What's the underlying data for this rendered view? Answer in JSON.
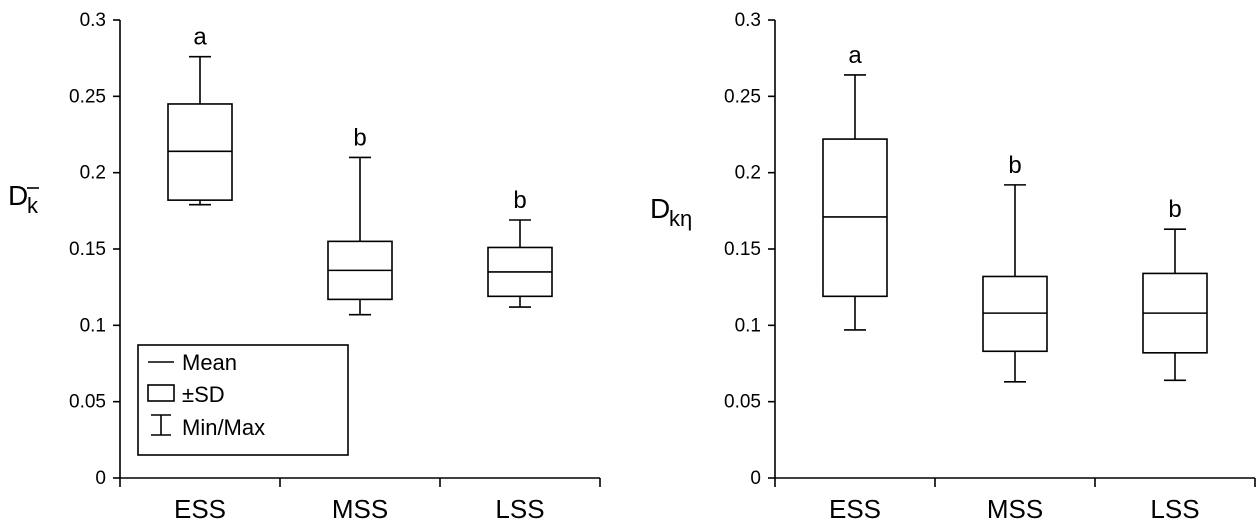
{
  "chart_data": [
    {
      "type": "box",
      "ylabel": {
        "main": "D",
        "sub": "k",
        "overline_sub": true
      },
      "ylim": [
        0,
        0.3
      ],
      "yticks": [
        "0",
        "0.05",
        "0.1",
        "0.15",
        "0.2",
        "0.25",
        "0.3"
      ],
      "categories": [
        "ESS",
        "MSS",
        "LSS"
      ],
      "series": [
        {
          "category": "ESS",
          "min": 0.179,
          "sd_low": 0.182,
          "mean": 0.214,
          "sd_high": 0.245,
          "max": 0.276,
          "letter": "a"
        },
        {
          "category": "MSS",
          "min": 0.107,
          "sd_low": 0.117,
          "mean": 0.136,
          "sd_high": 0.155,
          "max": 0.21,
          "letter": "b"
        },
        {
          "category": "LSS",
          "min": 0.112,
          "sd_low": 0.119,
          "mean": 0.135,
          "sd_high": 0.151,
          "max": 0.169,
          "letter": "b"
        }
      ],
      "legend": {
        "placement": "bottom-left",
        "items": [
          "Mean",
          "±SD",
          "Min/Max"
        ]
      }
    },
    {
      "type": "box",
      "ylabel": {
        "main": "D",
        "sub": "kη",
        "overline_sub": false
      },
      "ylim": [
        0,
        0.3
      ],
      "yticks": [
        "0",
        "0.05",
        "0.1",
        "0.15",
        "0.2",
        "0.25",
        "0.3"
      ],
      "categories": [
        "ESS",
        "MSS",
        "LSS"
      ],
      "series": [
        {
          "category": "ESS",
          "min": 0.097,
          "sd_low": 0.119,
          "mean": 0.171,
          "sd_high": 0.222,
          "max": 0.264,
          "letter": "a"
        },
        {
          "category": "MSS",
          "min": 0.063,
          "sd_low": 0.083,
          "mean": 0.108,
          "sd_high": 0.132,
          "max": 0.192,
          "letter": "b"
        },
        {
          "category": "LSS",
          "min": 0.064,
          "sd_low": 0.082,
          "mean": 0.108,
          "sd_high": 0.134,
          "max": 0.163,
          "letter": "b"
        }
      ]
    }
  ]
}
